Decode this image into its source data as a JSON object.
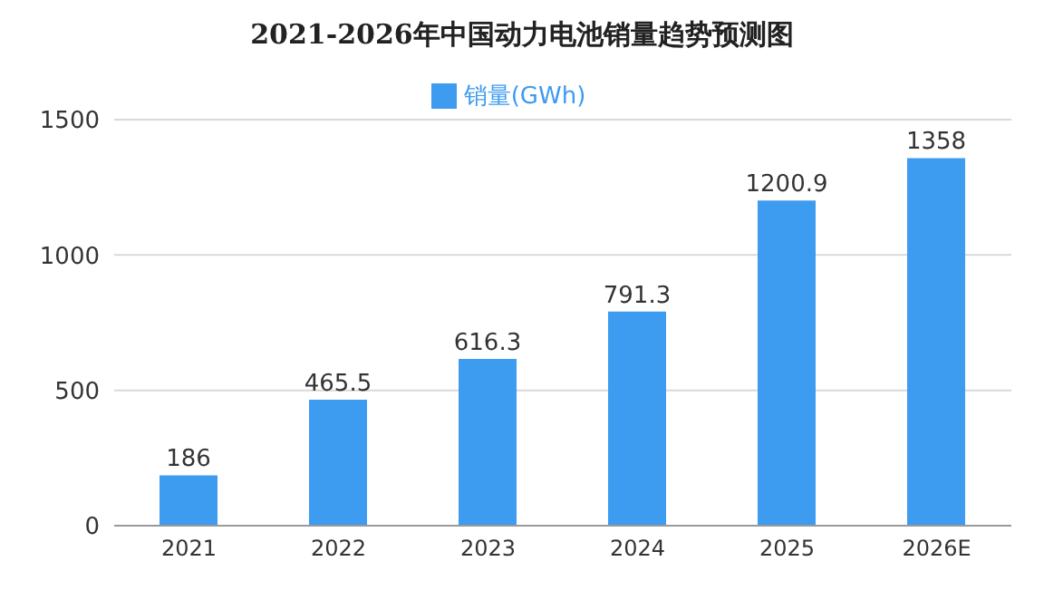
{
  "chart_data": {
    "type": "bar",
    "title": "2021-2026年中国动力电池销量趋势预测图",
    "categories": [
      "2021",
      "2022",
      "2023",
      "2024",
      "2025",
      "2026E"
    ],
    "series": [
      {
        "name": "销量(GWh)",
        "color": "#3d9bf0",
        "values": [
          186,
          465.5,
          616.3,
          791.3,
          1200.9,
          1358
        ]
      }
    ],
    "ylim": [
      0,
      1500
    ],
    "yticks": [
      0,
      500,
      1000,
      1500
    ],
    "grid": "y",
    "legend": "top",
    "data_labels": true
  }
}
